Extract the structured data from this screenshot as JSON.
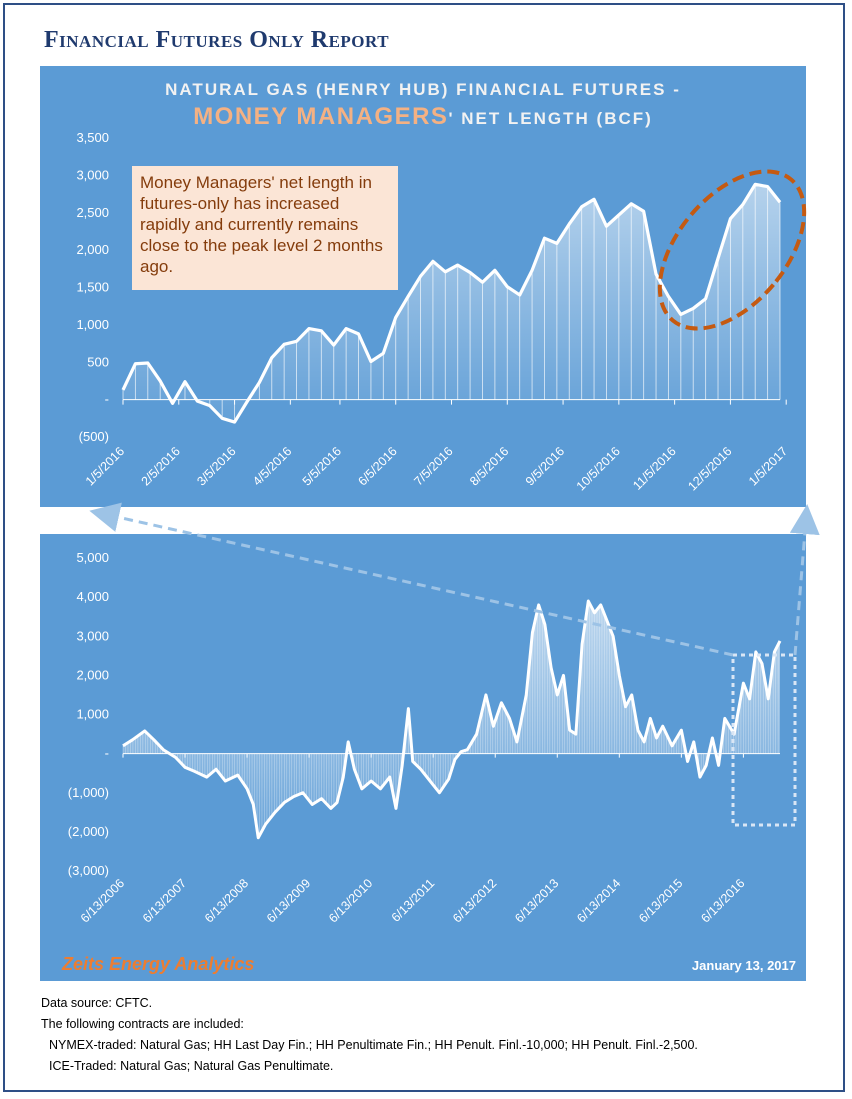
{
  "report_title": "Financial Futures Only Report",
  "colors": {
    "panel": "#5b9bd5",
    "line": "#ffffff",
    "accent": "#c55a11",
    "title": "#1f3a6e"
  },
  "chart_data": [
    {
      "type": "area",
      "title_line1": "NATURAL GAS (HENRY HUB) FINANCIAL FUTURES -",
      "title_highlight": "MONEY MANAGERS",
      "title_line2_rest": "' NET LENGTH (BCF)",
      "annotation": "Money Managers' net length in futures-only has increased rapidly and currently remains close to the peak level 2 months ago.",
      "ylim": [
        -500,
        3500
      ],
      "yticks": [
        {
          "v": 3500,
          "label": "3,500"
        },
        {
          "v": 3000,
          "label": "3,000"
        },
        {
          "v": 2500,
          "label": "2,500"
        },
        {
          "v": 2000,
          "label": "2,000"
        },
        {
          "v": 1500,
          "label": "1,500"
        },
        {
          "v": 1000,
          "label": "1,000"
        },
        {
          "v": 500,
          "label": "500"
        },
        {
          "v": 0,
          "label": "-"
        },
        {
          "v": -500,
          "label": "(500)"
        }
      ],
      "xticks": [
        "1/5/2016",
        "2/5/2016",
        "3/5/2016",
        "4/5/2016",
        "5/5/2016",
        "6/5/2016",
        "7/5/2016",
        "8/5/2016",
        "9/5/2016",
        "10/5/2016",
        "11/5/2016",
        "12/5/2016",
        "1/5/2017"
      ],
      "xtick_index": [
        0,
        4.5,
        9,
        13.5,
        17.5,
        22,
        26.5,
        31,
        35.5,
        40,
        44.5,
        49,
        53.5
      ],
      "values": [
        130,
        480,
        490,
        250,
        -50,
        240,
        -20,
        -80,
        -250,
        -300,
        -30,
        230,
        560,
        740,
        780,
        950,
        920,
        730,
        950,
        880,
        510,
        620,
        1100,
        1380,
        1650,
        1850,
        1710,
        1800,
        1700,
        1570,
        1730,
        1510,
        1400,
        1730,
        2160,
        2090,
        2350,
        2580,
        2680,
        2320,
        2470,
        2620,
        2520,
        1680,
        1380,
        1140,
        1220,
        1350,
        1890,
        2420,
        2610,
        2880,
        2850,
        2640
      ]
    },
    {
      "type": "area",
      "ylim": [
        -3000,
        5000
      ],
      "yticks": [
        {
          "v": 5000,
          "label": "5,000"
        },
        {
          "v": 4000,
          "label": "4,000"
        },
        {
          "v": 3000,
          "label": "3,000"
        },
        {
          "v": 2000,
          "label": "2,000"
        },
        {
          "v": 1000,
          "label": "1,000"
        },
        {
          "v": 0,
          "label": "-"
        },
        {
          "v": -1000,
          "label": "(1,000)"
        },
        {
          "v": -2000,
          "label": "(2,000)"
        },
        {
          "v": -3000,
          "label": "(3,000)"
        }
      ],
      "xticks": [
        "6/13/2006",
        "6/13/2007",
        "6/13/2008",
        "6/13/2009",
        "6/13/2010",
        "6/13/2011",
        "6/13/2012",
        "6/13/2013",
        "6/13/2014",
        "6/13/2015",
        "6/13/2016"
      ],
      "x_start_year": 2006.45,
      "x_end_year": 2017.04,
      "points": [
        [
          2006.45,
          200
        ],
        [
          2006.6,
          350
        ],
        [
          2006.8,
          580
        ],
        [
          2006.95,
          350
        ],
        [
          2007.1,
          100
        ],
        [
          2007.3,
          -100
        ],
        [
          2007.45,
          -350
        ],
        [
          2007.6,
          -450
        ],
        [
          2007.8,
          -600
        ],
        [
          2007.95,
          -400
        ],
        [
          2008.1,
          -700
        ],
        [
          2008.3,
          -550
        ],
        [
          2008.45,
          -900
        ],
        [
          2008.55,
          -1300
        ],
        [
          2008.63,
          -2150
        ],
        [
          2008.75,
          -1800
        ],
        [
          2008.9,
          -1500
        ],
        [
          2009.05,
          -1250
        ],
        [
          2009.2,
          -1100
        ],
        [
          2009.35,
          -1000
        ],
        [
          2009.5,
          -1300
        ],
        [
          2009.65,
          -1150
        ],
        [
          2009.8,
          -1400
        ],
        [
          2009.9,
          -1250
        ],
        [
          2010.0,
          -600
        ],
        [
          2010.08,
          300
        ],
        [
          2010.18,
          -400
        ],
        [
          2010.3,
          -900
        ],
        [
          2010.45,
          -700
        ],
        [
          2010.6,
          -900
        ],
        [
          2010.75,
          -600
        ],
        [
          2010.85,
          -1400
        ],
        [
          2010.95,
          -300
        ],
        [
          2011.05,
          1150
        ],
        [
          2011.12,
          -200
        ],
        [
          2011.25,
          -400
        ],
        [
          2011.4,
          -700
        ],
        [
          2011.55,
          -1000
        ],
        [
          2011.7,
          -650
        ],
        [
          2011.8,
          -150
        ],
        [
          2011.9,
          50
        ],
        [
          2012.0,
          100
        ],
        [
          2012.15,
          500
        ],
        [
          2012.3,
          1500
        ],
        [
          2012.42,
          700
        ],
        [
          2012.55,
          1300
        ],
        [
          2012.68,
          900
        ],
        [
          2012.8,
          300
        ],
        [
          2012.95,
          1500
        ],
        [
          2013.05,
          3100
        ],
        [
          2013.15,
          3800
        ],
        [
          2013.25,
          3300
        ],
        [
          2013.35,
          2200
        ],
        [
          2013.45,
          1500
        ],
        [
          2013.55,
          2000
        ],
        [
          2013.65,
          600
        ],
        [
          2013.75,
          500
        ],
        [
          2013.85,
          2800
        ],
        [
          2013.95,
          3900
        ],
        [
          2014.05,
          3600
        ],
        [
          2014.15,
          3800
        ],
        [
          2014.25,
          3400
        ],
        [
          2014.35,
          3000
        ],
        [
          2014.45,
          2000
        ],
        [
          2014.55,
          1200
        ],
        [
          2014.65,
          1500
        ],
        [
          2014.75,
          600
        ],
        [
          2014.85,
          300
        ],
        [
          2014.95,
          900
        ],
        [
          2015.05,
          400
        ],
        [
          2015.15,
          700
        ],
        [
          2015.3,
          200
        ],
        [
          2015.45,
          600
        ],
        [
          2015.55,
          -200
        ],
        [
          2015.65,
          300
        ],
        [
          2015.75,
          -600
        ],
        [
          2015.85,
          -300
        ],
        [
          2015.95,
          400
        ],
        [
          2016.05,
          -300
        ],
        [
          2016.15,
          900
        ],
        [
          2016.3,
          500
        ],
        [
          2016.45,
          1800
        ],
        [
          2016.55,
          1400
        ],
        [
          2016.65,
          2600
        ],
        [
          2016.75,
          2300
        ],
        [
          2016.85,
          1400
        ],
        [
          2016.95,
          2600
        ],
        [
          2017.04,
          2880
        ]
      ]
    }
  ],
  "footer": {
    "brand": "Zeits Energy Analytics",
    "date": "January 13, 2017"
  },
  "notes": {
    "source": "Data source: CFTC.",
    "intro": "The following contracts are included:",
    "nymex": "NYMEX-traded: Natural Gas; HH Last Day Fin.; HH Penultimate Fin.; HH Penult. Finl.-10,000; HH Penult. Finl.-2,500.",
    "ice": "ICE-Traded: Natural Gas; Natural Gas Penultimate."
  }
}
